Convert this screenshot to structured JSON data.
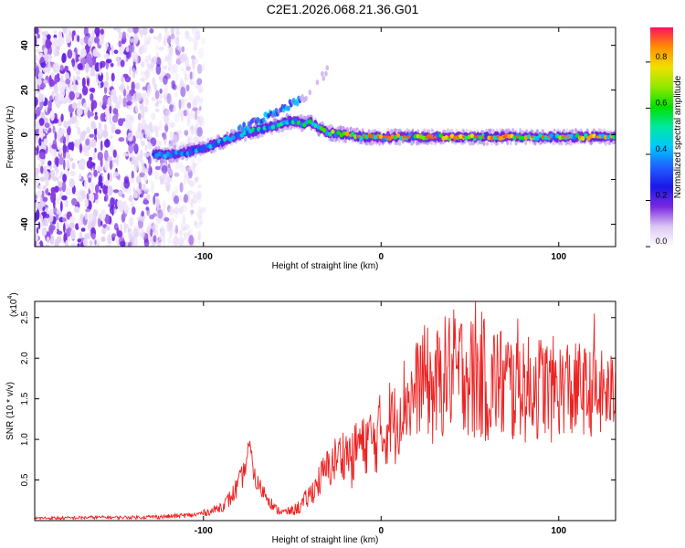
{
  "figure_title": "C2E1.2026.068.21.36.G01",
  "colors": {
    "snr_line": "#ee2222",
    "frame": "#000000"
  },
  "chart_data": [
    {
      "type": "heatmap",
      "name": "spectrogram",
      "title": "C2E1.2026.068.21.36.G01",
      "xlabel": "Height of straight line (km)",
      "ylabel": "Frequency (Hz)",
      "xlim": [
        -195,
        132
      ],
      "ylim": [
        -50,
        48
      ],
      "xticks": [
        -100,
        0,
        100
      ],
      "xtick_labels": [
        "-100",
        "0",
        "100"
      ],
      "yticks": [
        -40,
        -20,
        0,
        20,
        40
      ],
      "ytick_labels": [
        "-40",
        "-20",
        "0",
        "20",
        "40"
      ],
      "colorbar": {
        "label": "Normalized spectral amplitude",
        "range": [
          0,
          0.95
        ],
        "ticks": [
          0.0,
          0.2,
          0.4,
          0.6,
          0.8
        ],
        "tick_labels": [
          "0.0",
          "0.2",
          "0.4",
          "0.6",
          "0.8"
        ],
        "colormap": [
          "#ffffff",
          "#dcc8f4",
          "#7a28e0",
          "#1a18e8",
          "#2060ff",
          "#00c8ff",
          "#00e8a0",
          "#00e000",
          "#90e800",
          "#f0e000",
          "#ff9000",
          "#ff1060"
        ]
      },
      "noise_region_x": [
        -195,
        -115
      ],
      "signal_track": {
        "x": [
          -128,
          -120,
          -110,
          -100,
          -90,
          -80,
          -70,
          -60,
          -52,
          -48,
          -44,
          -40,
          -35,
          -30,
          -20,
          -10,
          0,
          20,
          40,
          60,
          80,
          100,
          120,
          132
        ],
        "frequency": [
          -9,
          -9,
          -8,
          -6,
          -3,
          0,
          2,
          4,
          6,
          6,
          5,
          6,
          3,
          1,
          0,
          -1,
          -1,
          -1,
          -1,
          -1,
          -1,
          -1,
          -1,
          -1
        ],
        "peak_amplitude": [
          0.45,
          0.45,
          0.4,
          0.45,
          0.5,
          0.55,
          0.6,
          0.6,
          0.55,
          0.55,
          0.6,
          0.6,
          0.7,
          0.75,
          0.85,
          0.9,
          0.9,
          0.9,
          0.9,
          0.9,
          0.9,
          0.9,
          0.85,
          0.85
        ]
      },
      "secondary_track": {
        "x": [
          -80,
          -70,
          -60,
          -50,
          -45,
          -40,
          -30
        ],
        "frequency": [
          2,
          6,
          10,
          14,
          16,
          19,
          29
        ]
      }
    },
    {
      "type": "line",
      "name": "snr",
      "xlabel": "Height of straight line (km)",
      "ylabel": "SNR (10 * v/v)",
      "y_scale_label": "(x10⁴)",
      "y_scale_base": "(x10",
      "y_scale_exp": "4",
      "xlim": [
        -195,
        132
      ],
      "ylim": [
        0,
        2.7
      ],
      "xticks": [
        -100,
        0,
        100
      ],
      "xtick_labels": [
        "-100",
        "0",
        "100"
      ],
      "yticks": [
        0.5,
        1.0,
        1.5,
        2.0,
        2.5
      ],
      "ytick_labels": [
        "0.5",
        "1.0",
        "1.5",
        "2.0",
        "2.5"
      ],
      "series": [
        {
          "name": "SNR",
          "x": [
            -195,
            -180,
            -160,
            -140,
            -120,
            -105,
            -95,
            -88,
            -84,
            -80,
            -77,
            -74,
            -71,
            -68,
            -64,
            -60,
            -55,
            -50,
            -45,
            -40,
            -37,
            -34,
            -31,
            -28,
            -25,
            -22,
            -19,
            -16,
            -13,
            -10,
            -7,
            -4,
            -1,
            2,
            5,
            8,
            11,
            14,
            17,
            20,
            23,
            26,
            29,
            32,
            35,
            38,
            41,
            44,
            47,
            50,
            53,
            56,
            59,
            62,
            65,
            68,
            71,
            74,
            77,
            80,
            83,
            86,
            89,
            92,
            95,
            98,
            101,
            104,
            107,
            110,
            113,
            116,
            119,
            122,
            125,
            128,
            132
          ],
          "values": [
            0.03,
            0.03,
            0.04,
            0.04,
            0.05,
            0.07,
            0.12,
            0.2,
            0.3,
            0.45,
            0.6,
            0.95,
            0.5,
            0.4,
            0.3,
            0.15,
            0.1,
            0.12,
            0.18,
            0.32,
            0.42,
            0.52,
            0.62,
            0.68,
            0.78,
            0.82,
            0.85,
            0.72,
            1.0,
            0.88,
            1.05,
            0.92,
            1.12,
            1.05,
            1.28,
            1.18,
            1.42,
            1.52,
            1.48,
            1.62,
            1.78,
            1.72,
            1.58,
            1.68,
            1.75,
            1.88,
            1.72,
            1.82,
            1.9,
            1.78,
            1.68,
            1.8,
            1.72,
            1.62,
            1.78,
            1.65,
            1.72,
            1.6,
            1.78,
            1.68,
            1.58,
            1.72,
            1.62,
            1.7,
            1.55,
            1.68,
            1.6,
            1.72,
            1.55,
            1.6,
            1.68,
            1.52,
            1.62,
            1.48,
            1.6,
            1.55,
            1.58
          ],
          "variability": [
            0.02,
            0.02,
            0.02,
            0.02,
            0.03,
            0.03,
            0.05,
            0.08,
            0.12,
            0.15,
            0.15,
            0.05,
            0.15,
            0.12,
            0.1,
            0.06,
            0.05,
            0.06,
            0.1,
            0.15,
            0.18,
            0.22,
            0.25,
            0.28,
            0.3,
            0.32,
            0.34,
            0.36,
            0.38,
            0.4,
            0.42,
            0.44,
            0.45,
            0.47,
            0.5,
            0.52,
            0.55,
            0.58,
            0.6,
            0.62,
            0.65,
            0.68,
            0.7,
            0.72,
            0.74,
            0.75,
            0.76,
            0.78,
            0.8,
            0.8,
            0.8,
            0.8,
            0.78,
            0.78,
            0.76,
            0.75,
            0.74,
            0.73,
            0.72,
            0.7,
            0.7,
            0.68,
            0.68,
            0.66,
            0.65,
            0.64,
            0.62,
            0.62,
            0.6,
            0.6,
            0.58,
            0.58,
            0.56,
            0.55,
            0.54,
            0.52,
            0.5
          ],
          "peaks": [
            {
              "x": -75,
              "y": 0.95
            },
            {
              "x": 41,
              "y": 2.6
            },
            {
              "x": 53,
              "y": 2.7
            },
            {
              "x": 120,
              "y": 2.55
            }
          ]
        }
      ]
    }
  ]
}
